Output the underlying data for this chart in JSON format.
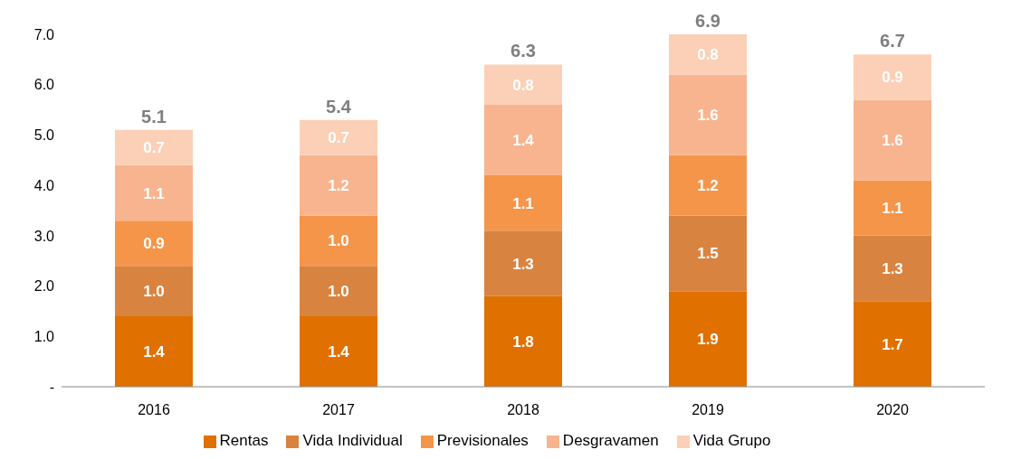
{
  "chart_data": {
    "type": "bar",
    "stacked": true,
    "categories": [
      "2016",
      "2017",
      "2018",
      "2019",
      "2020"
    ],
    "series": [
      {
        "name": "Rentas",
        "color": "#e07000",
        "values": [
          1.4,
          1.4,
          1.8,
          1.9,
          1.7
        ],
        "value_labels": [
          "1.4",
          "1.4",
          "1.8",
          "1.9",
          "1.7"
        ]
      },
      {
        "name": "Vida Individual",
        "color": "#d98340",
        "values": [
          1.0,
          1.0,
          1.3,
          1.5,
          1.3
        ],
        "value_labels": [
          "1.0",
          "1.0",
          "1.3",
          "1.5",
          "1.3"
        ]
      },
      {
        "name": "Previsionales",
        "color": "#f5954a",
        "values": [
          0.9,
          1.0,
          1.1,
          1.2,
          1.1
        ],
        "value_labels": [
          "0.9",
          "1.0",
          "1.1",
          "1.2",
          "1.1"
        ]
      },
      {
        "name": "Desgravamen",
        "color": "#f8b48e",
        "values": [
          1.1,
          1.2,
          1.4,
          1.6,
          1.6
        ],
        "value_labels": [
          "1.1",
          "1.2",
          "1.4",
          "1.6",
          "1.6"
        ]
      },
      {
        "name": "Vida Grupo",
        "color": "#fbd0b6",
        "values": [
          0.7,
          0.7,
          0.8,
          0.8,
          0.9
        ],
        "value_labels": [
          "0.7",
          "0.7",
          "0.8",
          "0.8",
          "0.9"
        ]
      }
    ],
    "totals": [
      "5.1",
      "5.4",
      "6.3",
      "6.9",
      "6.7"
    ],
    "ylim": [
      0,
      7
    ],
    "yticks": [
      {
        "value": 0,
        "label": "-"
      },
      {
        "value": 1,
        "label": "1.0"
      },
      {
        "value": 2,
        "label": "2.0"
      },
      {
        "value": 3,
        "label": "3.0"
      },
      {
        "value": 4,
        "label": "4.0"
      },
      {
        "value": 5,
        "label": "5.0"
      },
      {
        "value": 6,
        "label": "6.0"
      },
      {
        "value": 7,
        "label": "7.0"
      }
    ],
    "grid": false,
    "legend": "bottom",
    "marker": "square"
  }
}
